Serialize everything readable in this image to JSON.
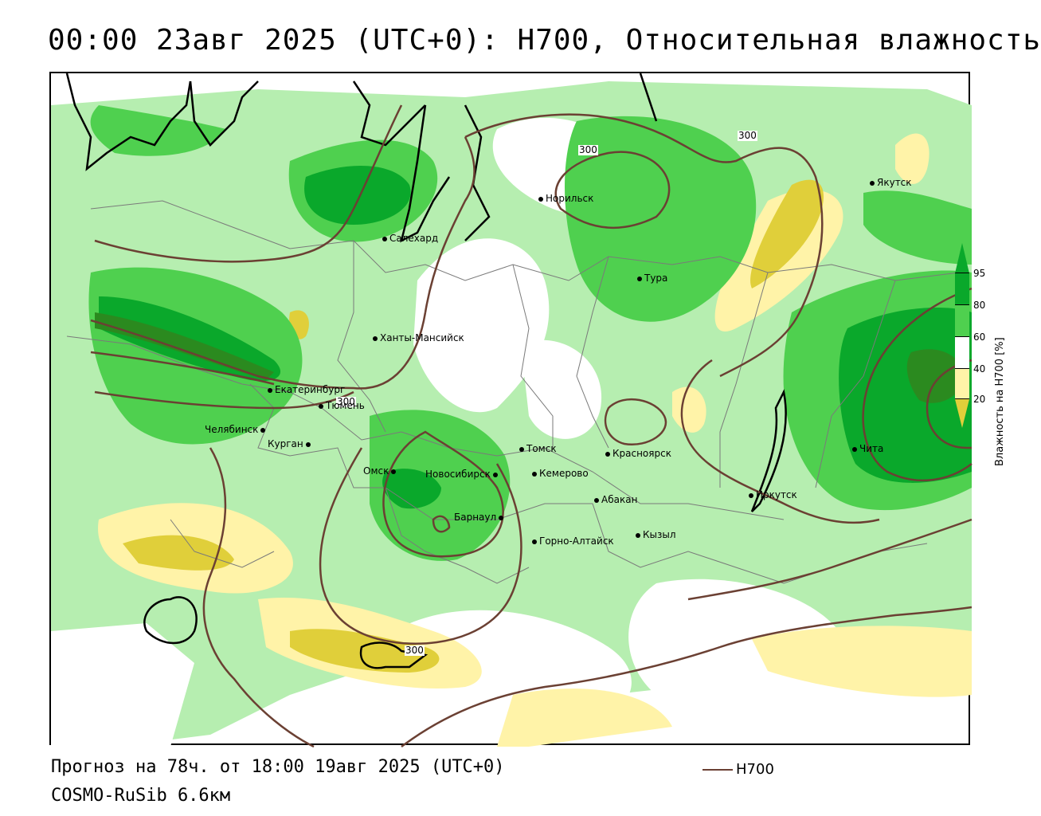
{
  "header": {
    "title": "00:00 23авг 2025 (UTC+0): H700, Относительная влажность"
  },
  "cities": [
    {
      "key": "norilsk",
      "name": "Норильск"
    },
    {
      "key": "yakutsk",
      "name": "Якутск"
    },
    {
      "key": "salekhard",
      "name": "Салехард"
    },
    {
      "key": "tura",
      "name": "Тура"
    },
    {
      "key": "khanty",
      "name": "Ханты-Мансийск"
    },
    {
      "key": "ekb",
      "name": "Екатеринбург"
    },
    {
      "key": "tyumen",
      "name": "Тюмень"
    },
    {
      "key": "chelyabinsk",
      "name": "Челябинск"
    },
    {
      "key": "kurgan",
      "name": "Курган"
    },
    {
      "key": "omsk",
      "name": "Омск"
    },
    {
      "key": "novosibirsk",
      "name": "Новосибирск"
    },
    {
      "key": "tomsk",
      "name": "Томск"
    },
    {
      "key": "kemerovo",
      "name": "Кемерово"
    },
    {
      "key": "krasnoyarsk",
      "name": "Красноярск"
    },
    {
      "key": "abakan",
      "name": "Абакан"
    },
    {
      "key": "barnaul",
      "name": "Барнаул"
    },
    {
      "key": "gorno",
      "name": "Горно-Алтайск"
    },
    {
      "key": "kyzyl",
      "name": "Кызыл"
    },
    {
      "key": "irkutsk",
      "name": "Иркутск"
    },
    {
      "key": "chita",
      "name": "Чита"
    }
  ],
  "contour_labels": [
    "300",
    "300",
    "300",
    "300"
  ],
  "colorbar": {
    "title": "Влажность на H700 [%]",
    "ticks": [
      "95",
      "80",
      "60",
      "40",
      "20"
    ],
    "colors": {
      "very_wet": "#2b8a1f",
      "wet": "#0aa82b",
      "moist": "#4fd04f",
      "light": "#b6eeb0",
      "neutral": "#ffffff",
      "dry": "#fff3a8",
      "very_dry": "#e0cf3a",
      "contour": "#6b4033"
    }
  },
  "footer": {
    "forecast_line": "Прогноз на 78ч. от 18:00 19авг 2025 (UTC+0)",
    "model_line": "COSMO-RuSib 6.6км",
    "legend_label": "H700"
  }
}
